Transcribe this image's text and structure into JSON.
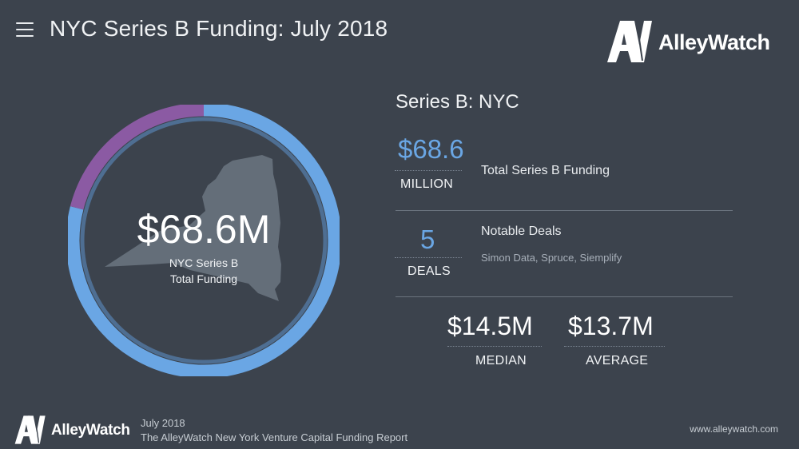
{
  "header": {
    "menu_icon": "hamburger-menu-icon",
    "title": "NYC Series B Funding: July 2018"
  },
  "brand": {
    "mark": "AW",
    "name": "AlleyWatch"
  },
  "colors": {
    "background": "#3c434d",
    "accent_blue": "#6aa6e4",
    "accent_purple": "#8b5aa3",
    "map_fill": "#646e79"
  },
  "chart_data": {
    "type": "pie",
    "center_value": "$68.6M",
    "center_caption_line1": "NYC Series B",
    "center_caption_line2": "Total Funding",
    "slices": [
      {
        "color": "#6aa6e4",
        "fraction": 0.79
      },
      {
        "color": "#8b5aa3",
        "fraction": 0.21
      }
    ],
    "background_image": "new-york-state-silhouette"
  },
  "summary": {
    "title": "Series B: NYC",
    "total": {
      "value": "$68.6",
      "unit": "MILLION",
      "label": "Total Series B Funding"
    },
    "deals": {
      "value": "5",
      "unit": "DEALS",
      "label": "Notable Deals",
      "companies": "Simon Data, Spruce, Siemplify"
    },
    "median": {
      "value": "$14.5M",
      "label": "MEDIAN"
    },
    "average": {
      "value": "$13.7M",
      "label": "AVERAGE"
    }
  },
  "footer": {
    "brand_name": "AlleyWatch",
    "month": "July 2018",
    "report": "The AlleyWatch New York Venture Capital Funding Report",
    "url": "www.alleywatch.com"
  }
}
